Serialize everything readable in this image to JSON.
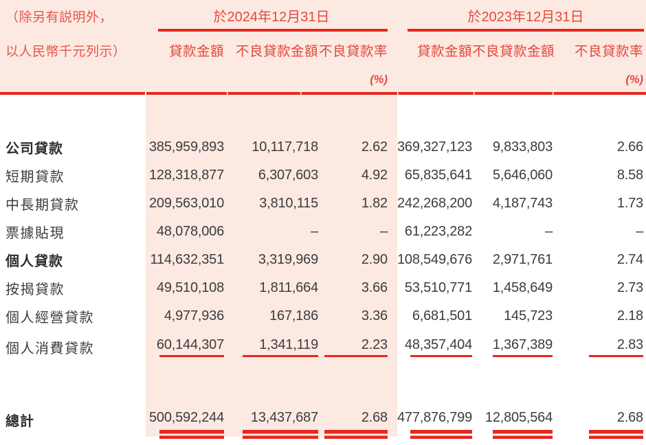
{
  "page": {
    "note_line1": "（除另有説明外，",
    "note_line2": "以人民幣千元列示）",
    "group_2024": "於2024年12月31日",
    "group_2023": "於2023年12月31日",
    "col_amount": "貸款金額",
    "col_npl_amount": "不良貸款金額",
    "col_npl_ratio": "不良貸款率",
    "ratio_unit": "(%)"
  },
  "rows": [
    {
      "label": "公司貸款",
      "a24": "385,959,893",
      "n24": "10,117,718",
      "r24": "2.62",
      "a23": "369,327,123",
      "n23": "9,833,803",
      "r23": "2.66"
    },
    {
      "label": "短期貸款",
      "a24": "128,318,877",
      "n24": "6,307,603",
      "r24": "4.92",
      "a23": "65,835,641",
      "n23": "5,646,060",
      "r23": "8.58"
    },
    {
      "label": "中長期貸款",
      "a24": "209,563,010",
      "n24": "3,810,115",
      "r24": "1.82",
      "a23": "242,268,200",
      "n23": "4,187,743",
      "r23": "1.73"
    },
    {
      "label": "票據貼現",
      "a24": "48,078,006",
      "n24": "–",
      "r24": "–",
      "a23": "61,223,282",
      "n23": "–",
      "r23": "–"
    },
    {
      "label": "個人貸款",
      "a24": "114,632,351",
      "n24": "3,319,969",
      "r24": "2.90",
      "a23": "108,549,676",
      "n23": "2,971,761",
      "r23": "2.74"
    },
    {
      "label": "按揭貸款",
      "a24": "49,510,108",
      "n24": "1,811,664",
      "r24": "3.66",
      "a23": "53,510,771",
      "n23": "1,458,649",
      "r23": "2.73"
    },
    {
      "label": "個人經營貸款",
      "a24": "4,977,936",
      "n24": "167,186",
      "r24": "3.36",
      "a23": "6,681,501",
      "n23": "145,723",
      "r23": "2.18"
    },
    {
      "label": "個人消費貸款",
      "a24": "60,144,307",
      "n24": "1,341,119",
      "r24": "2.23",
      "a23": "48,357,404",
      "n23": "1,367,389",
      "r23": "2.83"
    }
  ],
  "total": {
    "label": "總計",
    "a24": "500,592,244",
    "n24": "13,437,687",
    "r24": "2.68",
    "a23": "477,876,799",
    "n23": "12,805,564",
    "r23": "2.68"
  },
  "colors": {
    "page_pink": "#fce9e2",
    "rule_red": "#e5271d",
    "header_text_red": "#e2493c",
    "body_text": "#3c3c3c"
  }
}
